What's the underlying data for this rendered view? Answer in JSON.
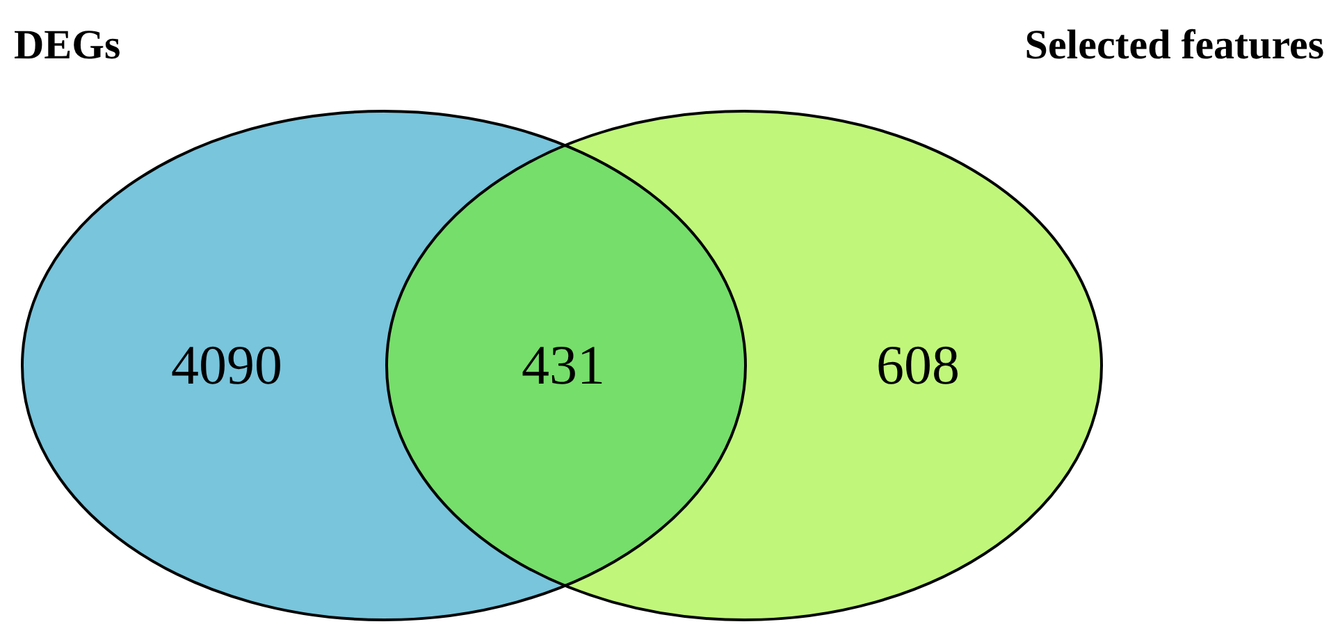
{
  "chart_data": {
    "type": "other",
    "categories": [
      null,
      null,
      null
    ],
    "values": [
      4090,
      431,
      608
    ],
    "colors": [
      "#78c5dc",
      "#76de6a",
      "#c0f77a"
    ],
    "data_labels": true,
    "annotations": [
      "DEGs",
      "Selected features"
    ]
  }
}
